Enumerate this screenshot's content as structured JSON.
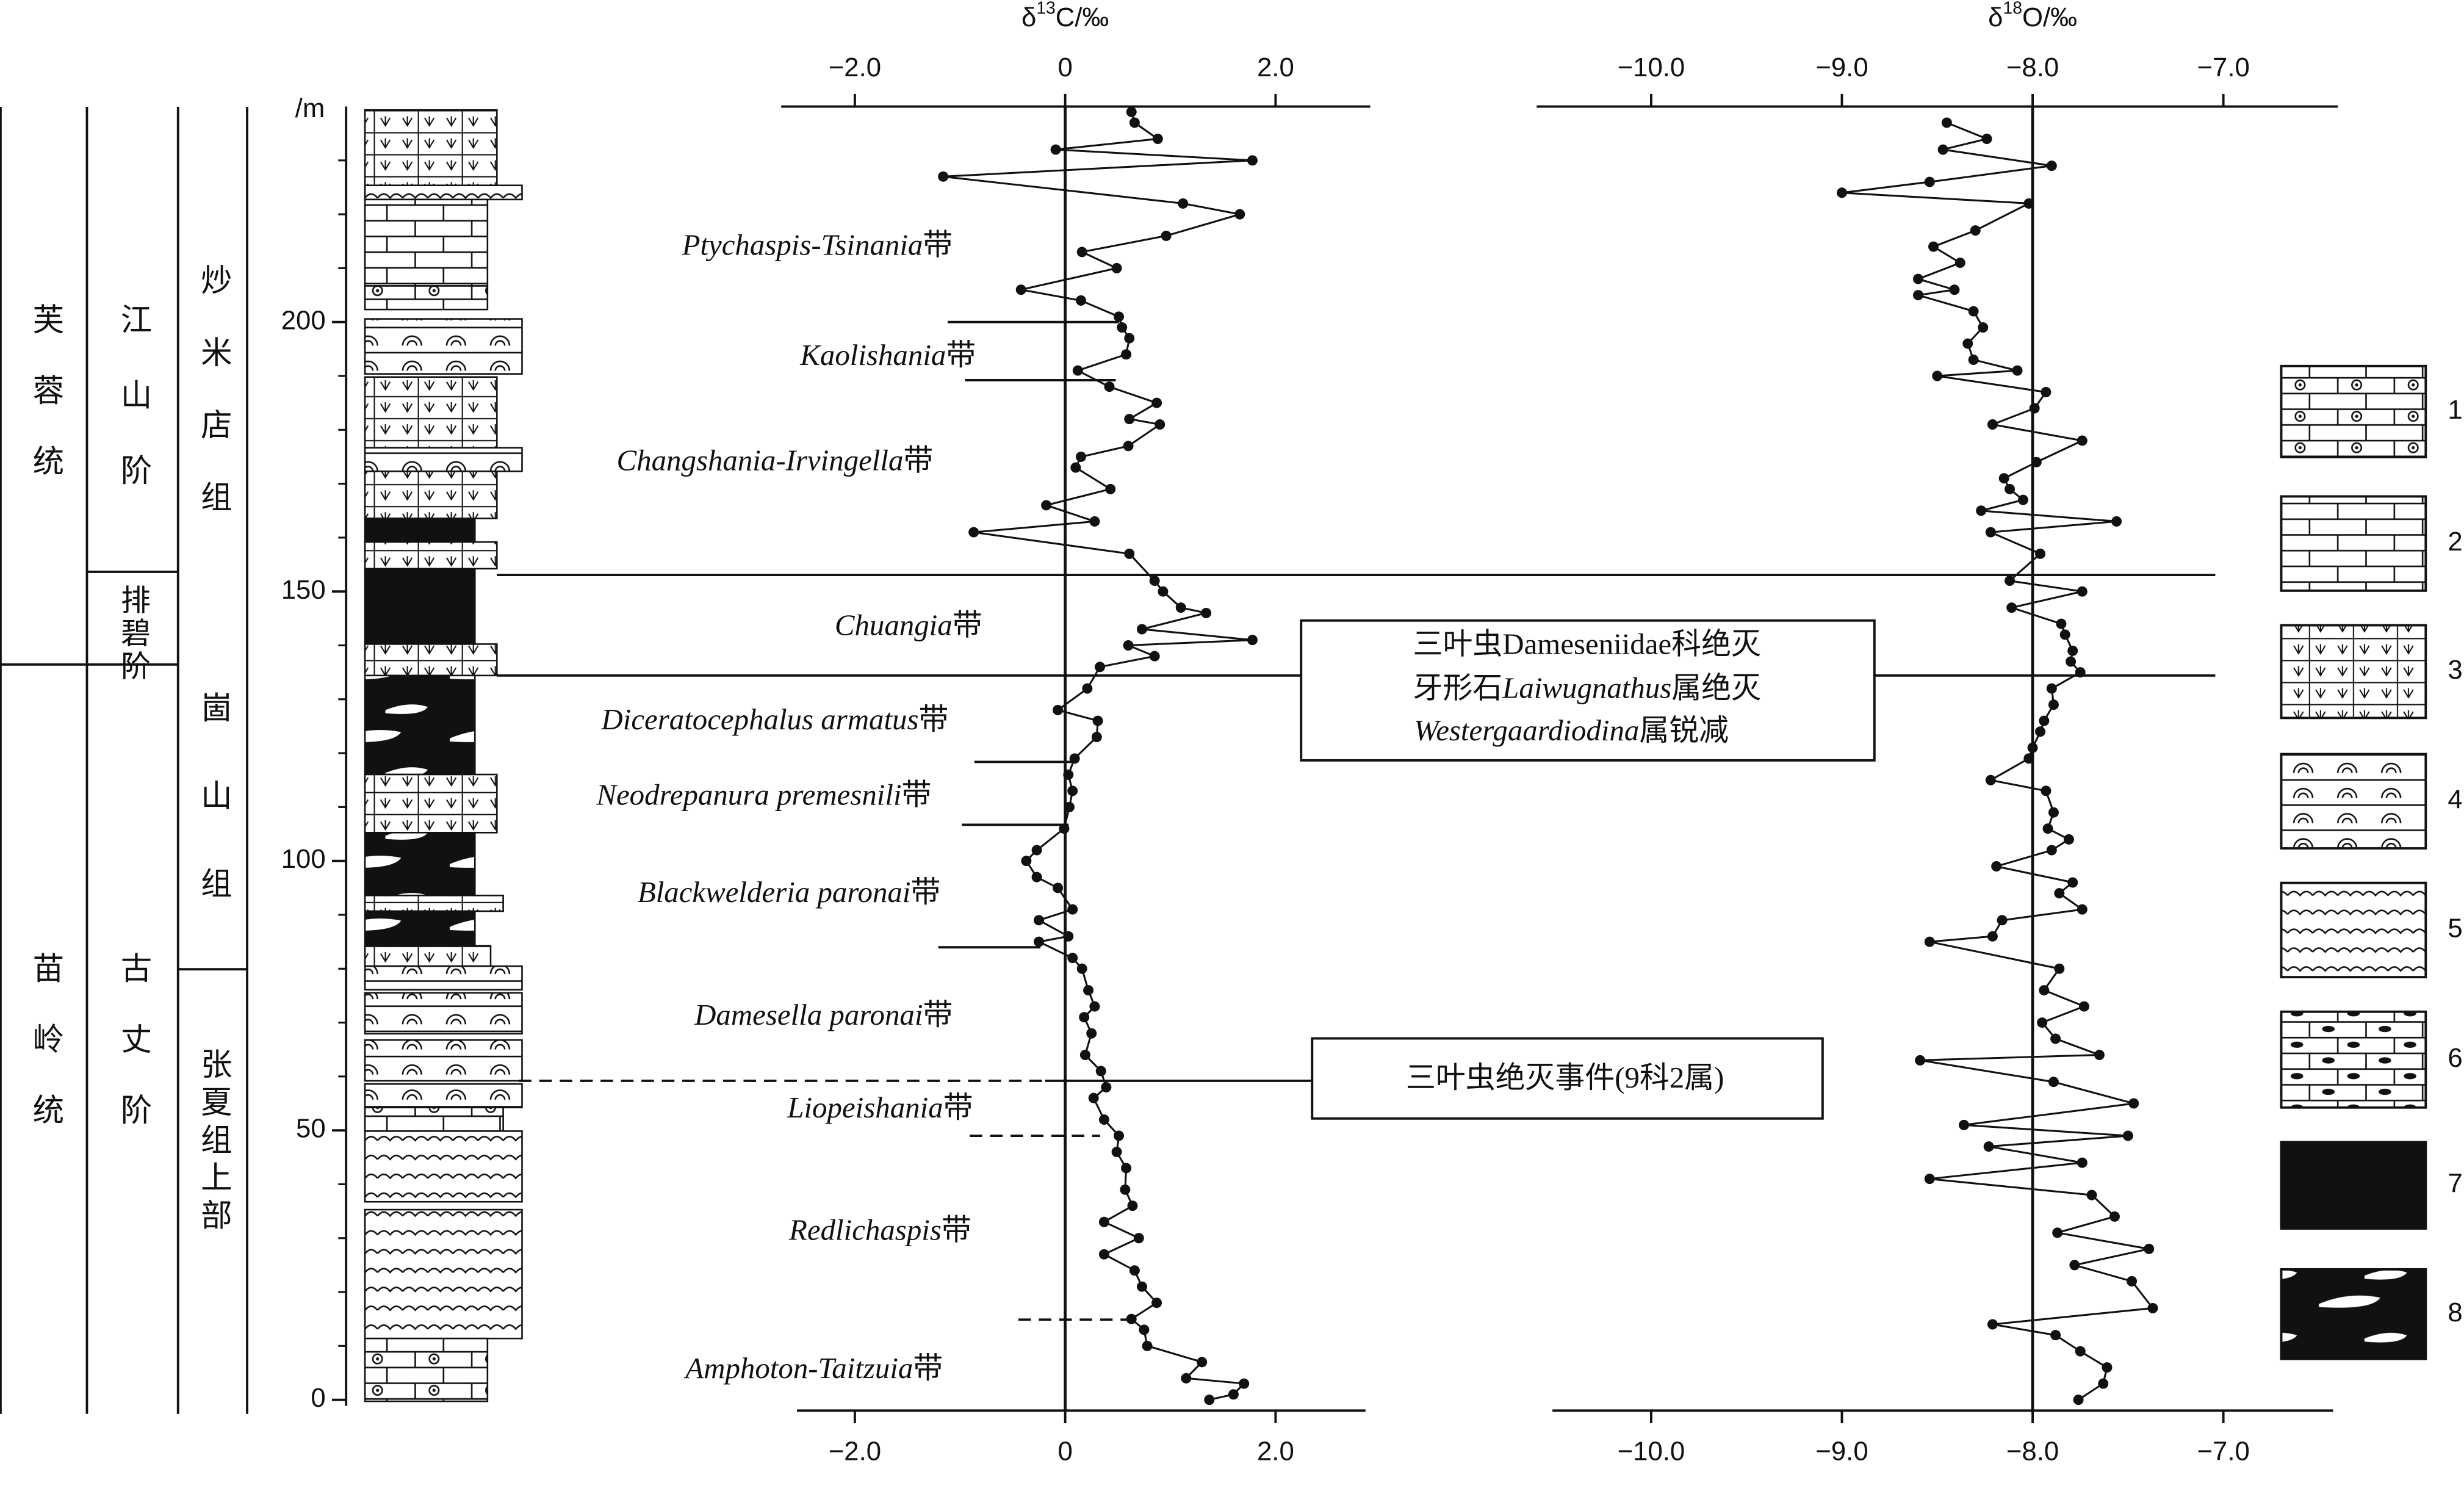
{
  "strata": {
    "series": [
      "芙蓉统",
      "苗岭统"
    ],
    "stages": [
      "江山阶",
      "排碧阶",
      "古丈阶"
    ],
    "formations": [
      "炒米店组",
      "崮山组",
      "张夏组上部"
    ]
  },
  "zones": [
    {
      "taxon": "Ptychaspis-Tsinania",
      "suffix": "带"
    },
    {
      "taxon": "Kaolishania",
      "suffix": "带"
    },
    {
      "taxon": "Changshania-Irvingella",
      "suffix": "带"
    },
    {
      "taxon": "Chuangia",
      "suffix": "带"
    },
    {
      "taxon": "Diceratocephalus armatus",
      "suffix": "带"
    },
    {
      "taxon": "Neodrepanura premesnili",
      "suffix": "带"
    },
    {
      "taxon": "Blackwelderia paronai",
      "suffix": "带"
    },
    {
      "taxon": "Damesella paronai",
      "suffix": "带"
    },
    {
      "taxon": "Liopeishania",
      "suffix": "带"
    },
    {
      "taxon": "Redlichaspis",
      "suffix": "带"
    },
    {
      "taxon": "Amphoton-Taitzuia",
      "suffix": "带"
    }
  ],
  "annotations": [
    {
      "lines": [
        [
          "三叶虫",
          "Dameseniidae科绝灭"
        ],
        [
          "牙形石",
          "Laiwugnathus",
          "属绝灭"
        ],
        [
          "Westergaardiodina",
          "属锐减"
        ]
      ]
    },
    {
      "lines": [
        [
          "三叶虫绝灭事件(9科2属)"
        ]
      ]
    }
  ],
  "legend": {
    "labels": [
      "1",
      "2",
      "3",
      "4",
      "5",
      "6",
      "7",
      "8"
    ]
  },
  "chart_data": [
    {
      "type": "line",
      "ylabel": [
        "δ",
        "13",
        "C/‰"
      ],
      "xlabel": "/m",
      "color": "#111",
      "refline": 0,
      "xlim": [
        -2,
        240
      ],
      "xticks": [
        0,
        50,
        100,
        150,
        200
      ],
      "xticks_minor": [
        10,
        20,
        30,
        40,
        60,
        70,
        80,
        90,
        110,
        120,
        130,
        140,
        160,
        170,
        180,
        190,
        210,
        220,
        230
      ],
      "ylim": [
        -2.7,
        2.9
      ],
      "yticks": [
        {
          "value": -2,
          "label": "−2.0"
        },
        0,
        {
          "value": 2,
          "label": "2.0"
        }
      ],
      "x": [
        239,
        237,
        234,
        232,
        230,
        227,
        222,
        220,
        216,
        213,
        210,
        206,
        204,
        201,
        199,
        197,
        194,
        191,
        188,
        185,
        182,
        181,
        177,
        175,
        173,
        169,
        166,
        163,
        161,
        157,
        152,
        150,
        147,
        146,
        143,
        141,
        140,
        138,
        136,
        132,
        128,
        126,
        123,
        119,
        116,
        113,
        110,
        106,
        102,
        100,
        97,
        95,
        91,
        89,
        86,
        85,
        82,
        80,
        76,
        73,
        71,
        68,
        64,
        61,
        58,
        56,
        52,
        49,
        46,
        43,
        39,
        36,
        33,
        30,
        27,
        24,
        21,
        18,
        15,
        13,
        10,
        7,
        4,
        3,
        1,
        0
      ],
      "values": [
        0.63,
        0.66,
        0.88,
        -0.09,
        1.78,
        -1.16,
        1.12,
        1.66,
        0.96,
        0.16,
        0.49,
        -0.42,
        0.15,
        0.51,
        0.54,
        0.61,
        0.58,
        0.12,
        0.42,
        0.87,
        0.61,
        0.9,
        0.6,
        0.15,
        0.1,
        0.43,
        -0.18,
        0.28,
        -0.87,
        0.61,
        0.85,
        0.93,
        1.1,
        1.34,
        0.73,
        1.78,
        0.6,
        0.85,
        0.33,
        0.21,
        -0.07,
        0.31,
        0.3,
        0.09,
        0.03,
        0.07,
        0.04,
        -0.01,
        -0.27,
        -0.37,
        -0.27,
        -0.07,
        0.07,
        -0.25,
        0.03,
        -0.25,
        0.07,
        0.16,
        0.22,
        0.28,
        0.18,
        0.25,
        0.19,
        0.34,
        0.39,
        0.27,
        0.37,
        0.51,
        0.49,
        0.58,
        0.57,
        0.64,
        0.37,
        0.7,
        0.37,
        0.66,
        0.73,
        0.87,
        0.63,
        0.75,
        0.78,
        1.3,
        1.15,
        1.7,
        1.6,
        1.37
      ]
    },
    {
      "type": "line",
      "ylabel": [
        "δ",
        "18",
        "O/‰"
      ],
      "color": "#111",
      "refline": -8,
      "xlim": [
        -2,
        240
      ],
      "ylim": [
        -10.6,
        -6.4
      ],
      "yticks": [
        {
          "value": -10,
          "label": "−10.0"
        },
        {
          "value": -9,
          "label": "−9.0"
        },
        {
          "value": -8,
          "label": "−8.0"
        },
        {
          "value": -7,
          "label": "−7.0"
        }
      ],
      "x": [
        237,
        234,
        232,
        229,
        226,
        224,
        222,
        217,
        214,
        211,
        208,
        206,
        205,
        202,
        199,
        196,
        193,
        191,
        190,
        187,
        184,
        181,
        178,
        174,
        171,
        169,
        167,
        165,
        163,
        161,
        157,
        152,
        150,
        147,
        144,
        142,
        139,
        137,
        135,
        132,
        129,
        126,
        124,
        121,
        119,
        115,
        113,
        109,
        106,
        104,
        102,
        99,
        96,
        94,
        91,
        89,
        86,
        85,
        80,
        76,
        73,
        70,
        67,
        64,
        63,
        59,
        55,
        51,
        49,
        47,
        44,
        41,
        38,
        34,
        31,
        28,
        25,
        22,
        17,
        14,
        12,
        9,
        6,
        3,
        0
      ],
      "values": [
        -8.45,
        -8.24,
        -8.47,
        -7.9,
        -8.54,
        -9.0,
        -8.02,
        -8.3,
        -8.52,
        -8.38,
        -8.6,
        -8.41,
        -8.6,
        -8.31,
        -8.26,
        -8.34,
        -8.31,
        -8.08,
        -8.5,
        -7.93,
        -7.99,
        -8.21,
        -7.74,
        -7.98,
        -8.15,
        -8.12,
        -8.05,
        -8.27,
        -7.56,
        -8.22,
        -7.96,
        -8.12,
        -7.74,
        -8.11,
        -7.85,
        -7.83,
        -7.79,
        -7.8,
        -7.75,
        -7.9,
        -7.89,
        -7.94,
        -7.96,
        -8.0,
        -8.02,
        -8.22,
        -7.93,
        -7.89,
        -7.92,
        -7.81,
        -7.9,
        -8.19,
        -7.79,
        -7.86,
        -7.74,
        -8.16,
        -8.21,
        -8.54,
        -7.86,
        -7.94,
        -7.73,
        -7.95,
        -7.88,
        -7.65,
        -8.59,
        -7.89,
        -7.47,
        -8.36,
        -7.5,
        -8.23,
        -7.74,
        -8.54,
        -7.69,
        -7.57,
        -7.87,
        -7.39,
        -7.78,
        -7.48,
        -7.37,
        -8.21,
        -7.88,
        -7.75,
        -7.61,
        -7.63,
        -7.76
      ]
    }
  ]
}
